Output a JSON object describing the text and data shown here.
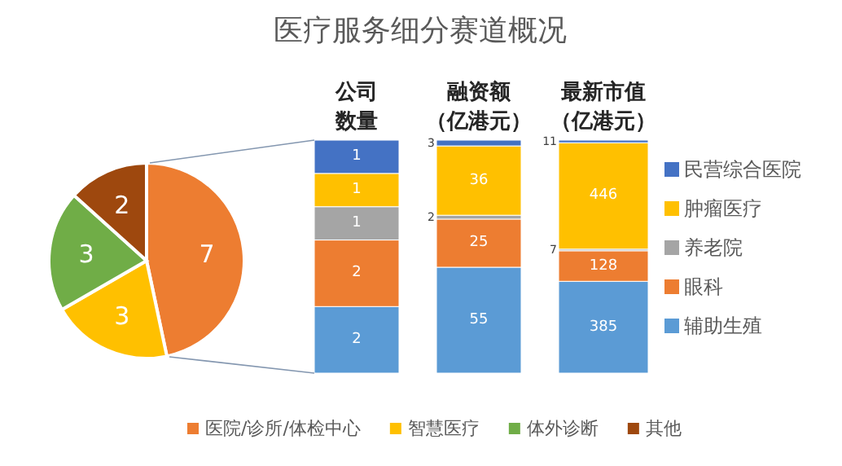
{
  "chart_data": [
    {
      "type": "pie",
      "title": "医疗服务细分赛道概况",
      "categories": [
        "医院/诊所/体检中心",
        "智慧医疗",
        "体外诊断",
        "其他"
      ],
      "values": [
        7,
        3,
        3,
        2
      ],
      "colors": [
        "#ed7d31",
        "#ffc000",
        "#70ad47",
        "#9e480e"
      ],
      "data_labels": true,
      "legend": "bottom"
    },
    {
      "type": "bar",
      "title": "公司数量",
      "categories": [
        null
      ],
      "stacked": true,
      "data_labels": true,
      "legend": false,
      "series": [
        {
          "color": "#5b9bd5",
          "values": [
            2
          ]
        },
        {
          "color": "#ed7d31",
          "values": [
            2
          ]
        },
        {
          "color": "#a5a5a5",
          "values": [
            1
          ]
        },
        {
          "color": "#ffc000",
          "values": [
            1
          ]
        },
        {
          "color": "#4472c4",
          "values": [
            1
          ]
        }
      ]
    },
    {
      "type": "bar",
      "title": "融资额（亿港元）",
      "categories": [
        null
      ],
      "stacked": true,
      "data_labels": true,
      "legend": false,
      "series": [
        {
          "color": "#5b9bd5",
          "values": [
            55
          ]
        },
        {
          "color": "#ed7d31",
          "values": [
            25
          ]
        },
        {
          "color": "#a5a5a5",
          "values": [
            2
          ]
        },
        {
          "color": "#ffc000",
          "values": [
            36
          ]
        },
        {
          "color": "#4472c4",
          "values": [
            3
          ]
        }
      ]
    },
    {
      "type": "bar",
      "title": "最新市值（亿港元）",
      "categories": [
        null
      ],
      "stacked": true,
      "data_labels": true,
      "legend": "right",
      "series": [
        {
          "name": "辅助生殖",
          "color": "#5b9bd5",
          "values": [
            385
          ]
        },
        {
          "name": "眼科",
          "color": "#ed7d31",
          "values": [
            128
          ]
        },
        {
          "name": "养老院",
          "color": "#a5a5a5",
          "values": [
            7
          ]
        },
        {
          "name": "肿瘤医疗",
          "color": "#ffc000",
          "values": [
            446
          ]
        },
        {
          "name": "民营综合医院",
          "color": "#4472c4",
          "values": [
            11
          ]
        }
      ]
    }
  ]
}
